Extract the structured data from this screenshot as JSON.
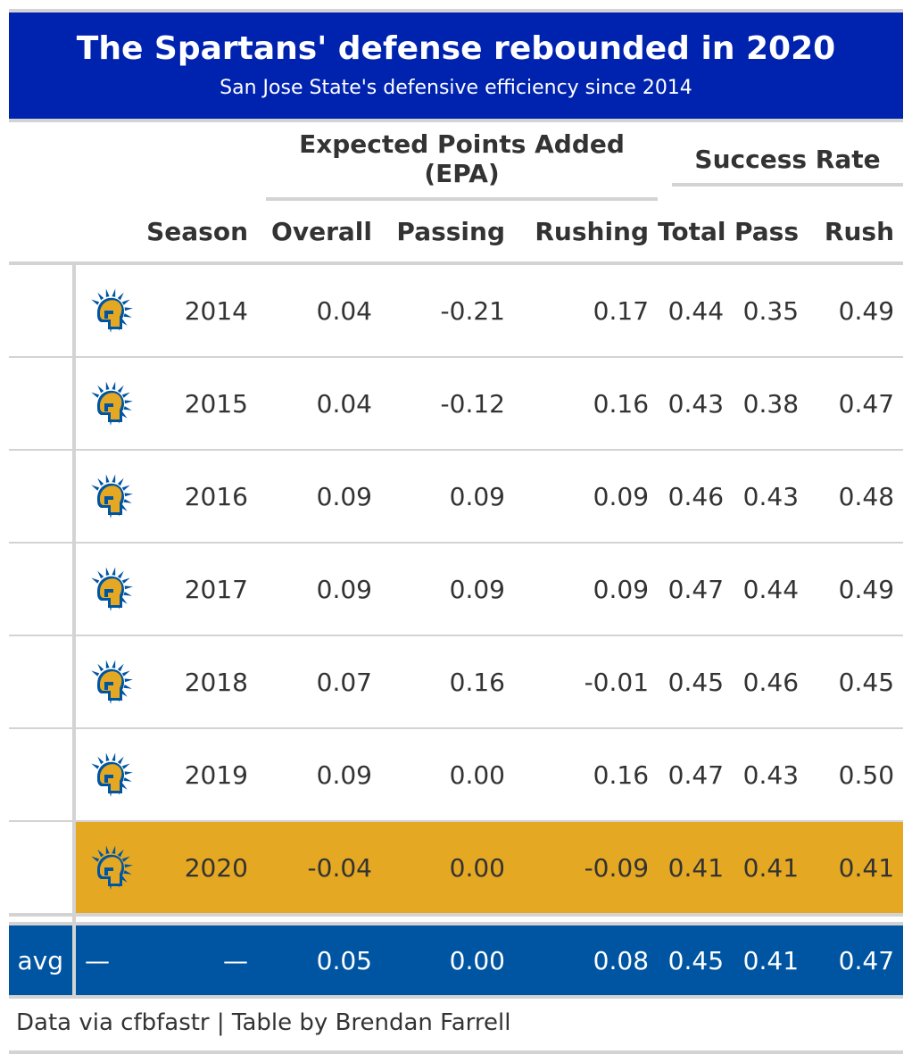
{
  "header": {
    "title": "The Spartans' defense rebounded in 2020",
    "subtitle": "San Jose State's defensive efficiency since 2014"
  },
  "spanners": {
    "epa": "Expected Points Added (EPA)",
    "success": "Success Rate"
  },
  "columns": {
    "season": "Season",
    "overall": "Overall",
    "passing": "Passing",
    "rushing": "Rushing",
    "total": "Total",
    "pass": "Pass",
    "rush": "Rush"
  },
  "rows": [
    {
      "season": "2014",
      "overall": "0.04",
      "passing": "-0.21",
      "rushing": "0.17",
      "total": "0.44",
      "pass": "0.35",
      "rush": "0.49"
    },
    {
      "season": "2015",
      "overall": "0.04",
      "passing": "-0.12",
      "rushing": "0.16",
      "total": "0.43",
      "pass": "0.38",
      "rush": "0.47"
    },
    {
      "season": "2016",
      "overall": "0.09",
      "passing": "0.09",
      "rushing": "0.09",
      "total": "0.46",
      "pass": "0.43",
      "rush": "0.48"
    },
    {
      "season": "2017",
      "overall": "0.09",
      "passing": "0.09",
      "rushing": "0.09",
      "total": "0.47",
      "pass": "0.44",
      "rush": "0.49"
    },
    {
      "season": "2018",
      "overall": "0.07",
      "passing": "0.16",
      "rushing": "-0.01",
      "total": "0.45",
      "pass": "0.46",
      "rush": "0.45"
    },
    {
      "season": "2019",
      "overall": "0.09",
      "passing": "0.00",
      "rushing": "0.16",
      "total": "0.47",
      "pass": "0.43",
      "rush": "0.50"
    },
    {
      "season": "2020",
      "overall": "-0.04",
      "passing": "0.00",
      "rushing": "-0.09",
      "total": "0.41",
      "pass": "0.41",
      "rush": "0.41"
    }
  ],
  "summary": {
    "label": "avg",
    "logo": "—",
    "season": "—",
    "overall": "0.05",
    "passing": "0.00",
    "rushing": "0.08",
    "total": "0.45",
    "pass": "0.41",
    "rush": "0.47"
  },
  "source_note": "Data via cfbfastr | Table by Brendan Farrell",
  "colors": {
    "header_bg": "#0023af",
    "highlight": "#e5a822",
    "summary_bg": "#0055a2",
    "rule": "#d3d3d3"
  },
  "icons": {
    "team_logo": "spartan-helmet-icon"
  },
  "chart_data": {
    "type": "table",
    "title": "The Spartans' defense rebounded in 2020",
    "subtitle": "San Jose State's defensive efficiency since 2014",
    "columns": [
      "Season",
      "Overall",
      "Passing",
      "Rushing",
      "Total",
      "Pass",
      "Rush"
    ],
    "column_groups": [
      {
        "name": "Expected Points Added (EPA)",
        "columns": [
          "Overall",
          "Passing",
          "Rushing"
        ]
      },
      {
        "name": "Success Rate",
        "columns": [
          "Total",
          "Pass",
          "Rush"
        ]
      }
    ],
    "rows": [
      [
        2014,
        0.04,
        -0.21,
        0.17,
        0.44,
        0.35,
        0.49
      ],
      [
        2015,
        0.04,
        -0.12,
        0.16,
        0.43,
        0.38,
        0.47
      ],
      [
        2016,
        0.09,
        0.09,
        0.09,
        0.46,
        0.43,
        0.48
      ],
      [
        2017,
        0.09,
        0.09,
        0.09,
        0.47,
        0.44,
        0.49
      ],
      [
        2018,
        0.07,
        0.16,
        -0.01,
        0.45,
        0.46,
        0.45
      ],
      [
        2019,
        0.09,
        0.0,
        0.16,
        0.47,
        0.43,
        0.5
      ],
      [
        2020,
        -0.04,
        0.0,
        -0.09,
        0.41,
        0.41,
        0.41
      ]
    ],
    "highlighted_row": 2020,
    "summary_row": {
      "label": "avg",
      "values": [
        null,
        0.05,
        0.0,
        0.08,
        0.45,
        0.41,
        0.47
      ]
    }
  }
}
